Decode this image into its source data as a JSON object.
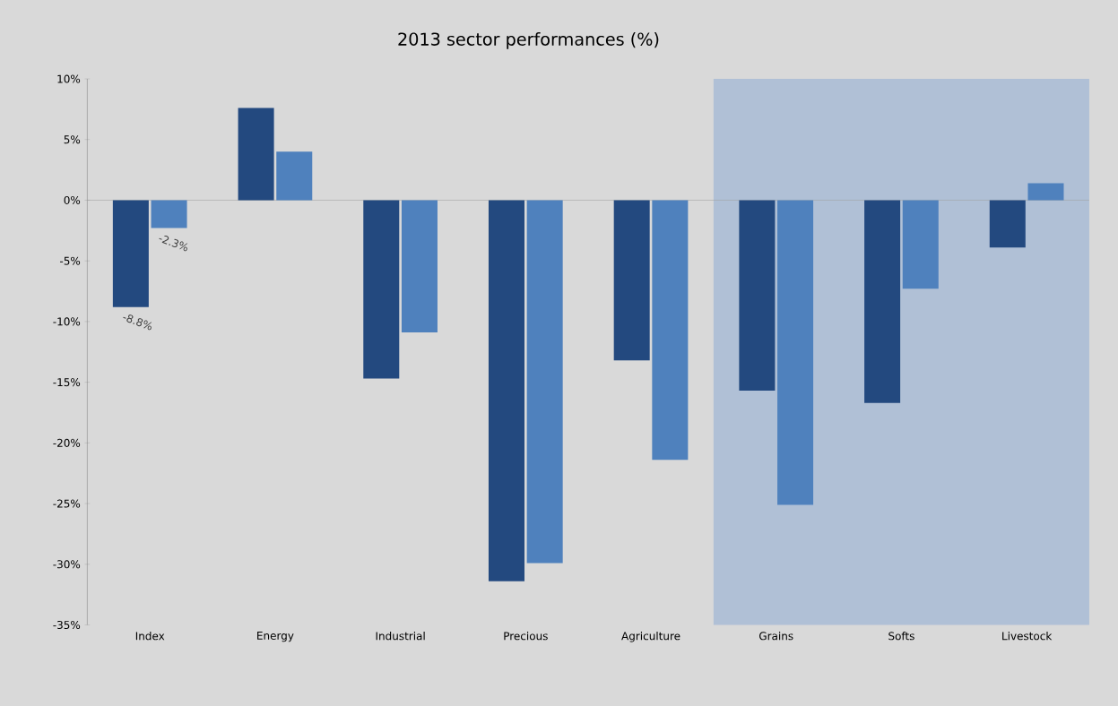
{
  "chart_data": {
    "type": "bar",
    "title": "2013 sector performances (%)",
    "categories": [
      "Index",
      "Energy",
      "Industrial",
      "Precious",
      "Agriculture",
      "Grains",
      "Softs",
      "Livestock"
    ],
    "series": [
      {
        "color": "#23497f",
        "values": [
          -8.8,
          7.6,
          -14.7,
          -31.4,
          -13.2,
          -15.7,
          -16.7,
          -3.9
        ],
        "value_labels": [
          "-8.8%",
          null,
          null,
          null,
          null,
          null,
          null,
          null
        ]
      },
      {
        "color": "#4f81bd",
        "values": [
          -2.3,
          4.0,
          -10.9,
          -29.9,
          -21.4,
          -25.1,
          -7.3,
          1.4
        ],
        "value_labels": [
          "-2.3%",
          null,
          null,
          null,
          null,
          null,
          null,
          null
        ]
      }
    ],
    "ylim": [
      -35,
      10
    ],
    "yticks": [
      {
        "value": -35,
        "label": "-35%"
      },
      {
        "value": -30,
        "label": "-30%"
      },
      {
        "value": -25,
        "label": "-25%"
      },
      {
        "value": -20,
        "label": "-20%"
      },
      {
        "value": -15,
        "label": "-15%"
      },
      {
        "value": -10,
        "label": "-10%"
      },
      {
        "value": -5,
        "label": "-5%"
      },
      {
        "value": 0,
        "label": "0%"
      },
      {
        "value": 5,
        "label": "5%"
      },
      {
        "value": 10,
        "label": "10%"
      }
    ],
    "bands": [
      {
        "axis": "x",
        "from": "Grains",
        "to": "Livestock",
        "color": "#b0c0d6"
      }
    ],
    "ref_lines": [
      {
        "axis": "y",
        "value": 0,
        "color": "#a0a0a0"
      }
    ]
  }
}
